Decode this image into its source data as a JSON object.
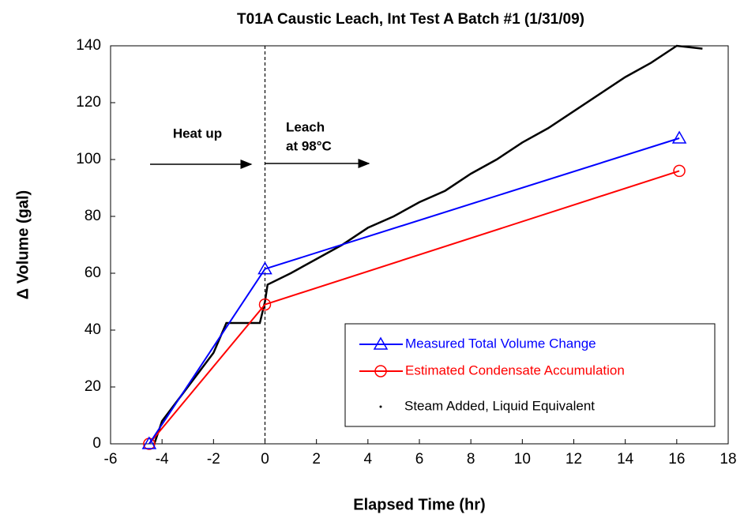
{
  "chart_data": {
    "type": "line",
    "title": "T01A Caustic Leach, Int Test A Batch #1 (1/31/09)",
    "x_label": "Elapsed Time (hr)",
    "y_label": "Δ Volume (gal)",
    "xlim": [
      -6,
      18
    ],
    "xticks": [
      -6,
      -4,
      -2,
      0,
      2,
      4,
      6,
      8,
      10,
      12,
      14,
      16,
      18
    ],
    "ylim": [
      0,
      140
    ],
    "yticks": [
      0,
      20,
      40,
      60,
      80,
      100,
      120,
      140
    ],
    "reference_line_x": 0,
    "annotations": [
      "Heat up",
      "Leach",
      "at 98°C"
    ],
    "series": [
      {
        "name": "Measured Total Volume Change",
        "color": "#0000ff",
        "marker": "triangle",
        "x": [
          -4.5,
          0,
          16.1
        ],
        "values": [
          0,
          61.5,
          107.5
        ]
      },
      {
        "name": "Estimated Condensate Accumulation",
        "color": "#ff0000",
        "marker": "circle",
        "x": [
          -4.5,
          0,
          16.1
        ],
        "values": [
          0,
          49,
          96
        ]
      },
      {
        "name": "Steam Added, Liquid Equivalent",
        "color": "#000000",
        "marker": "dot",
        "x": [
          -4.3,
          -4,
          -3,
          -2,
          -1.5,
          -0.2,
          0,
          0.1,
          1,
          2,
          3,
          4,
          5,
          6,
          7,
          8,
          9,
          10,
          11,
          12,
          13,
          14,
          15,
          16,
          17
        ],
        "values": [
          0,
          8,
          20,
          32,
          42.5,
          42.5,
          50,
          56,
          60,
          65,
          70,
          76,
          80,
          85,
          89,
          95,
          100,
          106,
          111,
          117,
          123,
          129,
          134,
          140,
          139
        ]
      }
    ]
  }
}
